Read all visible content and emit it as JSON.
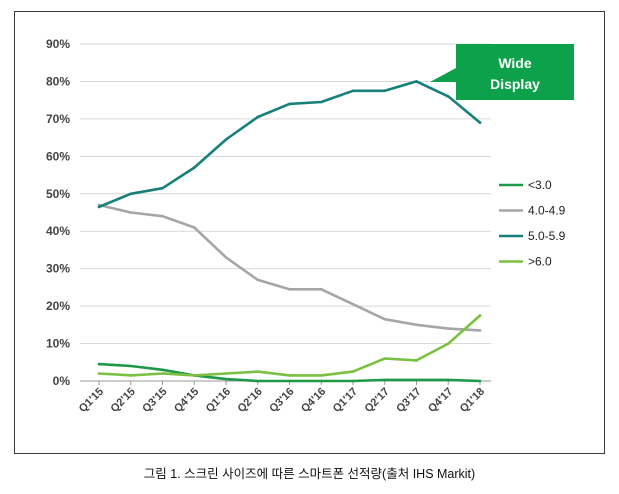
{
  "chart_data": {
    "type": "line",
    "categories": [
      "Q1'15",
      "Q2'15",
      "Q3'15",
      "Q4'15",
      "Q1'16",
      "Q2'16",
      "Q3'16",
      "Q4'16",
      "Q1'17",
      "Q2'17",
      "Q3'17",
      "Q4'17",
      "Q1'18"
    ],
    "ylim": [
      0,
      90
    ],
    "yticks": [
      "0%",
      "10%",
      "20%",
      "30%",
      "40%",
      "50%",
      "60%",
      "70%",
      "80%",
      "90%"
    ],
    "grid": true,
    "legend_position": "right",
    "series": [
      {
        "name": "<3.0",
        "color": "#1e9a46",
        "values": [
          4.5,
          4,
          3,
          1.5,
          0.5,
          0,
          0,
          0,
          0,
          0.3,
          0.3,
          0.3,
          0
        ]
      },
      {
        "name": "4.0-4.9",
        "color": "#a6a6a6",
        "values": [
          47,
          45,
          44,
          41,
          33,
          27,
          24.5,
          24.5,
          20.5,
          16.5,
          15,
          14,
          13.5
        ]
      },
      {
        "name": "5.0-5.9",
        "color": "#17807a",
        "values": [
          46.5,
          50,
          51.5,
          57,
          64.5,
          70.5,
          74,
          74.5,
          77.5,
          77.5,
          80,
          76,
          69
        ]
      },
      {
        "name": ">6.0",
        "color": "#7ac142",
        "values": [
          2,
          1.5,
          2,
          1.5,
          2,
          2.5,
          1.5,
          1.5,
          2.5,
          6,
          5.5,
          10,
          17.5
        ]
      }
    ],
    "annotation": {
      "lines": [
        "Wide",
        "Display"
      ],
      "color": "#0ca14a"
    }
  },
  "caption": "그림 1. 스크린 사이즈에 따른 스마트폰 선적량(출처 IHS Markit)"
}
